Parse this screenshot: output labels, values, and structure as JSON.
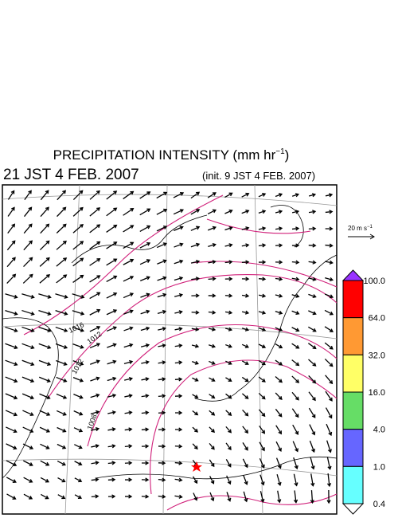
{
  "header": {
    "title": {
      "text": "PRECIPITATION INTENSITY (mm hr",
      "sup": "−1",
      "close": ")"
    },
    "valid_time": "21 JST 4 FEB. 2007",
    "init_time": "(init. 9 JST 4 FEB. 2007)"
  },
  "reference_vector": {
    "text": "20 m s",
    "sup": "−1"
  },
  "colorbar": {
    "labels": [
      "100.0",
      "64.0",
      "32.0",
      "16.0",
      "4.0",
      "1.0",
      "0.4"
    ],
    "colors": [
      "#ff0000",
      "#ff9933",
      "#ffff66",
      "#66dd66",
      "#6666ff",
      "#66ffff"
    ],
    "over_color": "#9933ff",
    "under_color": "#ffffff"
  },
  "contour_labels": [
    "1016",
    "1012",
    "1012",
    "1008"
  ]
}
